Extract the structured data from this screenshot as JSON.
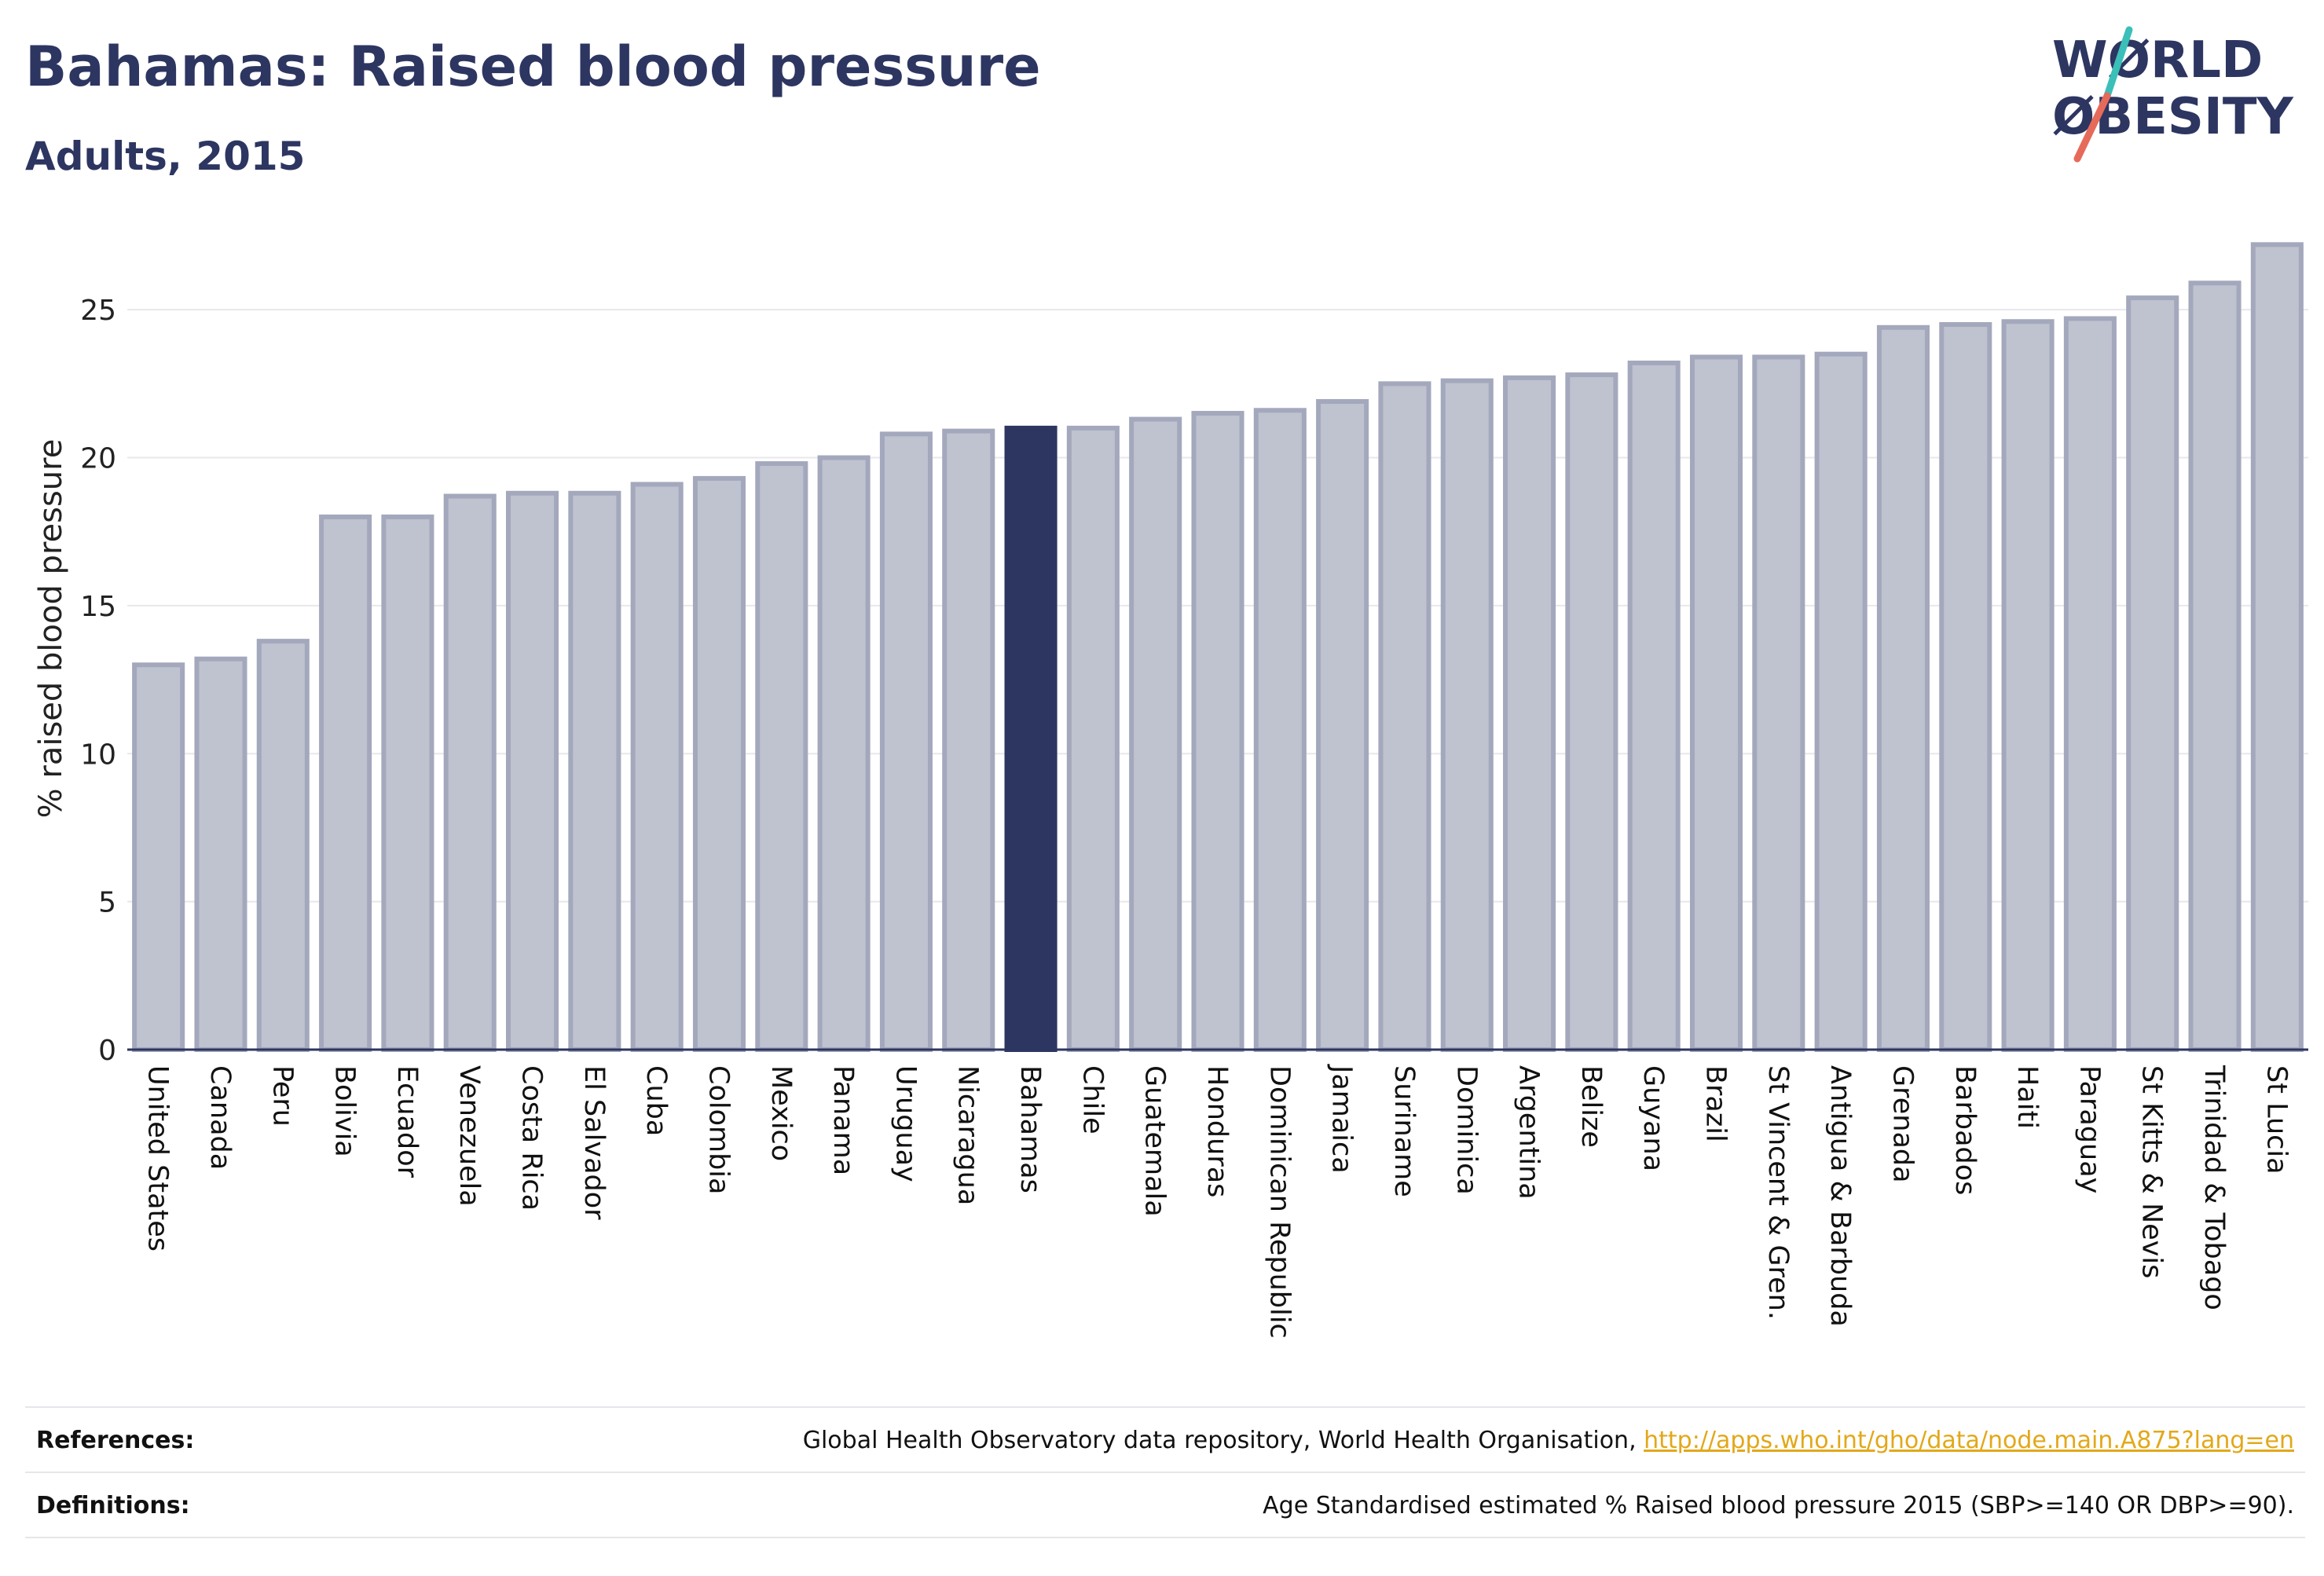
{
  "header": {
    "title": "Bahamas: Raised blood pressure",
    "subtitle": "Adults, 2015"
  },
  "logo": {
    "line1": "WØRLD",
    "line2": "ØBESITY",
    "text_color": "#2d3561",
    "slash_top_color": "#3bbfb9",
    "slash_bottom_color": "#e66a5a"
  },
  "chart_data": {
    "type": "bar",
    "ylabel": "% raised blood pressure",
    "ylim": [
      0,
      27.5
    ],
    "yticks": [
      0,
      5,
      10,
      15,
      20,
      25
    ],
    "grid": true,
    "highlight": "Bahamas",
    "bar_color": "#bfc2cf",
    "bar_edge_color": "#a4a8bc",
    "highlight_color": "#2d3561",
    "categories": [
      "United States",
      "Canada",
      "Peru",
      "Bolivia",
      "Ecuador",
      "Venezuela",
      "Costa Rica",
      "El Salvador",
      "Cuba",
      "Colombia",
      "Mexico",
      "Panama",
      "Uruguay",
      "Nicaragua",
      "Bahamas",
      "Chile",
      "Guatemala",
      "Honduras",
      "Dominican Republic",
      "Jamaica",
      "Suriname",
      "Dominica",
      "Argentina",
      "Belize",
      "Guyana",
      "Brazil",
      "St Vincent & Gren.",
      "Antigua & Barbuda",
      "Grenada",
      "Barbados",
      "Haiti",
      "Paraguay",
      "St Kitts & Nevis",
      "Trinidad & Tobago",
      "St Lucia"
    ],
    "values": [
      13.0,
      13.2,
      13.8,
      18.0,
      18.0,
      18.7,
      18.8,
      18.8,
      19.1,
      19.3,
      19.8,
      20.0,
      20.8,
      20.9,
      21.0,
      21.0,
      21.3,
      21.5,
      21.6,
      21.9,
      22.5,
      22.6,
      22.7,
      22.8,
      23.2,
      23.4,
      23.4,
      23.5,
      24.4,
      24.5,
      24.6,
      24.7,
      25.4,
      25.9,
      27.2
    ]
  },
  "footer": {
    "references_label": "References:",
    "references_text": "Global Health Observatory data repository, World Health Organisation, ",
    "references_link": "http://apps.who.int/gho/data/node.main.A875?lang=en",
    "definitions_label": "Definitions:",
    "definitions_text": "Age Standardised estimated % Raised blood pressure 2015 (SBP>=140 OR DBP>=90)."
  }
}
